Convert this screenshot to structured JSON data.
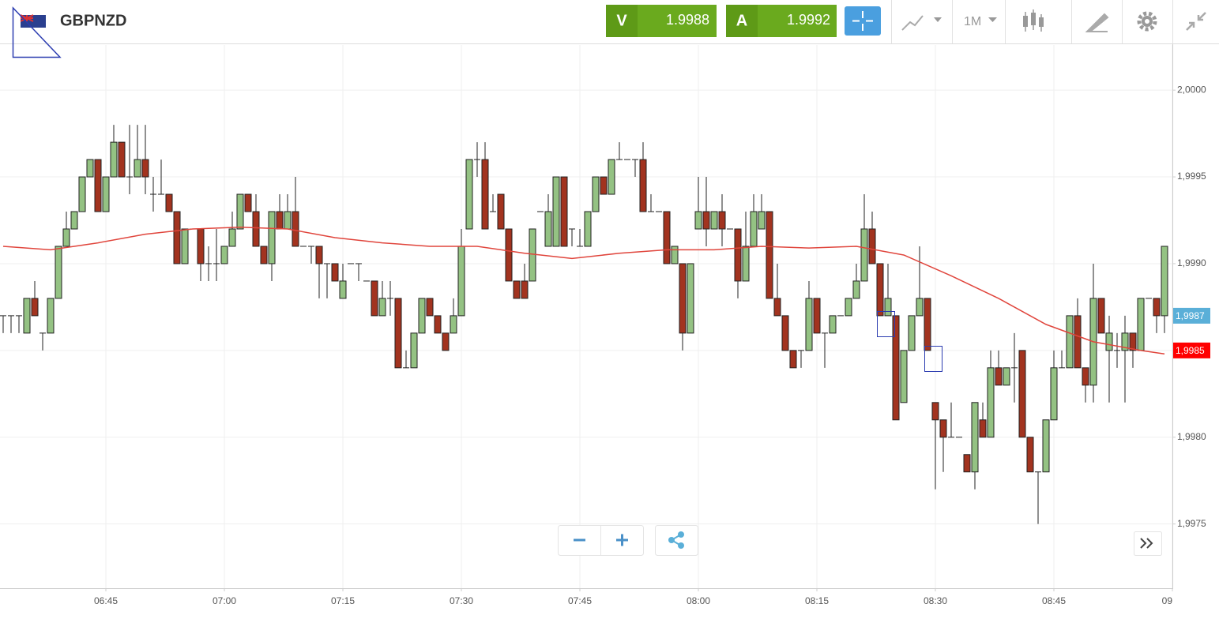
{
  "header": {
    "symbol": "GBPNZD",
    "sell": {
      "label": "V",
      "price": 1.9988
    },
    "buy": {
      "label": "A",
      "price": 1.9992
    },
    "timeframe": "1M"
  },
  "chart_data": {
    "type": "candlestick",
    "x": [
      "06:32",
      "06:33",
      "06:34",
      "06:35",
      "06:36",
      "06:37",
      "06:38",
      "06:39",
      "06:40",
      "06:41",
      "06:42",
      "06:43",
      "06:44",
      "06:45",
      "06:46",
      "06:47",
      "06:48",
      "06:49",
      "06:50",
      "06:51",
      "06:52",
      "06:53",
      "06:54",
      "06:55",
      "06:56",
      "06:57",
      "06:58",
      "06:59",
      "07:00",
      "07:01",
      "07:02",
      "07:03",
      "07:04",
      "07:05",
      "07:06",
      "07:07",
      "07:08",
      "07:09",
      "07:10",
      "07:11",
      "07:12",
      "07:13",
      "07:14",
      "07:15",
      "07:16",
      "07:17",
      "07:18",
      "07:19",
      "07:20",
      "07:21",
      "07:22",
      "07:23",
      "07:24",
      "07:25",
      "07:26",
      "07:27",
      "07:28",
      "07:29",
      "07:30",
      "07:31",
      "07:32",
      "07:33",
      "07:34",
      "07:35",
      "07:36",
      "07:37",
      "07:38",
      "07:39",
      "07:40",
      "07:41",
      "07:42",
      "07:43",
      "07:44",
      "07:45",
      "07:46",
      "07:47",
      "07:48",
      "07:49",
      "07:50",
      "07:51",
      "07:52",
      "07:53",
      "07:54",
      "07:55",
      "07:56",
      "07:57",
      "07:58",
      "07:59",
      "08:00",
      "08:01",
      "08:02",
      "08:03",
      "08:04",
      "08:05",
      "08:06",
      "08:07",
      "08:08",
      "08:09",
      "08:10",
      "08:11",
      "08:12",
      "08:13",
      "08:14",
      "08:15",
      "08:16",
      "08:17",
      "08:18",
      "08:19",
      "08:20",
      "08:21",
      "08:22",
      "08:23",
      "08:24",
      "08:25",
      "08:26",
      "08:27",
      "08:28",
      "08:29",
      "08:30",
      "08:31",
      "08:32",
      "08:33",
      "08:34",
      "08:35",
      "08:36",
      "08:37",
      "08:38",
      "08:39",
      "08:40",
      "08:41",
      "08:42",
      "08:43",
      "08:44",
      "08:45",
      "08:46",
      "08:47",
      "08:48",
      "08:49",
      "08:50",
      "08:51",
      "08:52",
      "08:53",
      "08:54",
      "08:55",
      "08:56",
      "08:57",
      "08:58",
      "08:59"
    ],
    "open": [
      1.9987,
      1.9987,
      1.9987,
      1.9986,
      1.9988,
      1.9986,
      1.9986,
      1.9988,
      1.9991,
      1.9992,
      1.9993,
      1.9995,
      1.9996,
      1.9993,
      1.9995,
      1.9997,
      1.9995,
      1.9995,
      1.9996,
      1.9994,
      1.9994,
      1.9994,
      1.9993,
      1.999,
      1.9992,
      1.9992,
      1.999,
      1.999,
      1.999,
      1.9991,
      1.9992,
      1.9994,
      1.9993,
      1.9991,
      1.999,
      1.9993,
      1.9992,
      1.9993,
      1.9991,
      1.9991,
      1.9991,
      1.999,
      1.999,
      1.9988,
      1.999,
      1.999,
      1.9989,
      1.9989,
      1.9987,
      1.9988,
      1.9988,
      1.9984,
      1.9984,
      1.9986,
      1.9988,
      1.9987,
      1.9986,
      1.9986,
      1.9987,
      1.9992,
      1.9996,
      1.9996,
      1.9993,
      1.9994,
      1.9992,
      1.9989,
      1.9989,
      1.9989,
      1.9993,
      1.9991,
      1.9991,
      1.9995,
      1.9992,
      1.9991,
      1.9991,
      1.9993,
      1.9995,
      1.9994,
      1.9996,
      1.9996,
      1.9996,
      1.9996,
      1.9993,
      1.9993,
      1.9993,
      1.999,
      1.999,
      1.9986,
      1.9992,
      1.9993,
      1.9992,
      1.9993,
      1.9992,
      1.9992,
      1.9989,
      1.9991,
      1.9992,
      1.9993,
      1.9988,
      1.9987,
      1.9985,
      1.9985,
      1.9985,
      1.9988,
      1.9986,
      1.9986,
      1.9987,
      1.9987,
      1.9988,
      1.9989,
      1.9992,
      1.999,
      1.9987,
      1.9987,
      1.9982,
      1.9985,
      1.9987,
      1.9988,
      1.9982,
      1.9981,
      1.998,
      1.998,
      1.9979,
      1.9978,
      1.9981,
      1.998,
      1.9984,
      1.9983,
      1.9984,
      1.9985,
      1.998,
      1.9978,
      1.9978,
      1.9981,
      1.9984,
      1.9984,
      1.9987,
      1.9984,
      1.9983,
      1.9988,
      1.9985,
      1.9985,
      1.9985,
      1.9986,
      1.9985,
      1.9988,
      1.9988,
      1.9987
    ],
    "high": [
      1.9987,
      1.9987,
      1.9987,
      1.9988,
      1.9989,
      1.9986,
      1.9988,
      1.9991,
      1.9993,
      1.9993,
      1.9995,
      1.9996,
      1.9996,
      1.9995,
      1.9998,
      1.9997,
      1.9998,
      1.9998,
      1.9998,
      1.9995,
      1.9996,
      1.9994,
      1.9993,
      1.9992,
      1.9992,
      1.9992,
      1.9991,
      1.9992,
      1.9991,
      1.9993,
      1.9994,
      1.9994,
      1.9994,
      1.9991,
      1.9993,
      1.9994,
      1.9994,
      1.9995,
      1.9991,
      1.9991,
      1.9991,
      1.999,
      1.999,
      1.999,
      1.999,
      1.999,
      1.9989,
      1.9989,
      1.9989,
      1.9989,
      1.9988,
      1.9985,
      1.9986,
      1.9988,
      1.9988,
      1.9987,
      1.9986,
      1.9988,
      1.9992,
      1.9996,
      1.9997,
      1.9997,
      1.9994,
      1.9994,
      1.9992,
      1.9989,
      1.999,
      1.9992,
      1.9993,
      1.9994,
      1.9995,
      1.9995,
      1.9992,
      1.9992,
      1.9993,
      1.9995,
      1.9995,
      1.9996,
      1.9997,
      1.9996,
      1.9996,
      1.9997,
      1.9994,
      1.9993,
      1.9993,
      1.9991,
      1.999,
      1.999,
      1.9995,
      1.9995,
      1.9993,
      1.9994,
      1.9992,
      1.9992,
      1.9993,
      1.9994,
      1.9994,
      1.9993,
      1.999,
      1.9987,
      1.9985,
      1.9985,
      1.9989,
      1.9988,
      1.9986,
      1.9987,
      1.9987,
      1.9988,
      1.999,
      1.9994,
      1.9993,
      1.999,
      1.999,
      1.9987,
      1.9985,
      1.9987,
      1.9991,
      1.9988,
      1.9982,
      1.9981,
      1.9982,
      1.998,
      1.9979,
      1.9982,
      1.9982,
      1.9985,
      1.9985,
      1.9984,
      1.9986,
      1.9985,
      1.998,
      1.9978,
      1.9981,
      1.9985,
      1.9985,
      1.9987,
      1.9988,
      1.9984,
      1.999,
      1.9988,
      1.9987,
      1.9986,
      1.9987,
      1.9986,
      1.9988,
      1.9988,
      1.9988,
      1.9991
    ],
    "low": [
      1.9986,
      1.9986,
      1.9986,
      1.9986,
      1.9987,
      1.9985,
      1.9986,
      1.9988,
      1.9991,
      1.9992,
      1.9993,
      1.9995,
      1.9993,
      1.9993,
      1.9995,
      1.9995,
      1.9994,
      1.9995,
      1.9994,
      1.9993,
      1.9994,
      1.9993,
      1.999,
      1.999,
      1.9992,
      1.9989,
      1.9989,
      1.9989,
      1.999,
      1.9991,
      1.9992,
      1.9993,
      1.9991,
      1.999,
      1.9989,
      1.9992,
      1.9992,
      1.9991,
      1.9991,
      1.999,
      1.9988,
      1.9988,
      1.9989,
      1.9988,
      1.999,
      1.9989,
      1.9989,
      1.9987,
      1.9987,
      1.9987,
      1.9984,
      1.9984,
      1.9984,
      1.9986,
      1.9987,
      1.9986,
      1.9985,
      1.9986,
      1.9987,
      1.9992,
      1.9995,
      1.9992,
      1.9993,
      1.9992,
      1.9989,
      1.9988,
      1.9988,
      1.9989,
      1.9993,
      1.9991,
      1.9991,
      1.9991,
      1.9991,
      1.9991,
      1.9991,
      1.9993,
      1.9994,
      1.9994,
      1.9996,
      1.9996,
      1.9995,
      1.9993,
      1.9993,
      1.9993,
      1.999,
      1.999,
      1.9985,
      1.9986,
      1.9992,
      1.9991,
      1.9992,
      1.9991,
      1.9992,
      1.9988,
      1.9989,
      1.9991,
      1.9992,
      1.9988,
      1.9987,
      1.9985,
      1.9984,
      1.9984,
      1.9985,
      1.9986,
      1.9984,
      1.9986,
      1.9987,
      1.9987,
      1.9988,
      1.9989,
      1.999,
      1.9987,
      1.9987,
      1.9981,
      1.9982,
      1.9985,
      1.9987,
      1.9985,
      1.9977,
      1.9978,
      1.998,
      1.998,
      1.9978,
      1.9977,
      1.998,
      1.998,
      1.9983,
      1.9983,
      1.9982,
      1.998,
      1.9978,
      1.9975,
      1.9978,
      1.9981,
      1.9984,
      1.9984,
      1.9984,
      1.9982,
      1.9982,
      1.9986,
      1.9982,
      1.9984,
      1.9982,
      1.9984,
      1.9985,
      1.9988,
      1.9986,
      1.9986
    ],
    "close": [
      1.9987,
      1.9987,
      1.9987,
      1.9988,
      1.9987,
      1.9986,
      1.9988,
      1.9991,
      1.9992,
      1.9993,
      1.9995,
      1.9996,
      1.9993,
      1.9995,
      1.9997,
      1.9995,
      1.9995,
      1.9996,
      1.9995,
      1.9994,
      1.9994,
      1.9993,
      1.999,
      1.9992,
      1.9992,
      1.999,
      1.999,
      1.999,
      1.9991,
      1.9992,
      1.9994,
      1.9993,
      1.9991,
      1.999,
      1.9993,
      1.9992,
      1.9993,
      1.9991,
      1.9991,
      1.9991,
      1.999,
      1.999,
      1.9989,
      1.9989,
      1.999,
      1.999,
      1.9989,
      1.9987,
      1.9988,
      1.9988,
      1.9984,
      1.9984,
      1.9986,
      1.9988,
      1.9987,
      1.9986,
      1.9985,
      1.9987,
      1.9991,
      1.9996,
      1.9996,
      1.9992,
      1.9993,
      1.9992,
      1.9989,
      1.9988,
      1.9988,
      1.9992,
      1.9993,
      1.9993,
      1.9995,
      1.9991,
      1.9992,
      1.9991,
      1.9993,
      1.9995,
      1.9994,
      1.9996,
      1.9996,
      1.9996,
      1.9996,
      1.9993,
      1.9993,
      1.9993,
      1.999,
      1.9991,
      1.9986,
      1.999,
      1.9993,
      1.9992,
      1.9993,
      1.9992,
      1.9992,
      1.9989,
      1.9991,
      1.9993,
      1.9993,
      1.9988,
      1.9987,
      1.9985,
      1.9984,
      1.9985,
      1.9988,
      1.9986,
      1.9986,
      1.9987,
      1.9987,
      1.9988,
      1.9989,
      1.9992,
      1.999,
      1.9987,
      1.9988,
      1.9981,
      1.9985,
      1.9987,
      1.9988,
      1.9985,
      1.9981,
      1.998,
      1.998,
      1.998,
      1.9978,
      1.9982,
      1.998,
      1.9984,
      1.9983,
      1.9984,
      1.9984,
      1.998,
      1.9978,
      1.9978,
      1.9981,
      1.9984,
      1.9984,
      1.9987,
      1.9984,
      1.9983,
      1.9988,
      1.9986,
      1.9986,
      1.9985,
      1.9986,
      1.9985,
      1.9988,
      1.9988,
      1.9987,
      1.9991
    ],
    "up_color": "#94c283",
    "down_color": "#a2331f",
    "moving_average": {
      "color": "#e0453c",
      "x": [
        "06:32",
        "06:38",
        "06:44",
        "06:50",
        "06:56",
        "07:02",
        "07:08",
        "07:14",
        "07:20",
        "07:26",
        "07:32",
        "07:38",
        "07:44",
        "07:50",
        "07:56",
        "08:02",
        "08:08",
        "08:14",
        "08:20",
        "08:26",
        "08:32",
        "08:38",
        "08:44",
        "08:50",
        "08:56",
        "08:59"
      ],
      "values": [
        1.9991,
        1.99908,
        1.99912,
        1.99917,
        1.9992,
        1.99921,
        1.9992,
        1.99915,
        1.99912,
        1.9991,
        1.9991,
        1.99906,
        1.99903,
        1.99906,
        1.99908,
        1.99908,
        1.9991,
        1.99909,
        1.9991,
        1.99905,
        1.99893,
        1.9988,
        1.99865,
        1.99855,
        1.9985,
        1.99848
      ]
    },
    "price_labels": [
      {
        "value": 1.9987,
        "label": "1,9987",
        "color": "#5aafd8"
      },
      {
        "value": 1.9985,
        "label": "1,9985",
        "color": "#ff0000"
      }
    ],
    "xlim": [
      "06:32",
      "09:00"
    ],
    "xticks": [
      "06:45",
      "07:00",
      "07:15",
      "07:30",
      "07:45",
      "08:00",
      "08:15",
      "08:30",
      "08:45",
      {
        "value": "09:00",
        "label": "09"
      }
    ],
    "ylim": [
      1.99713,
      2.00026
    ],
    "yticks": [
      {
        "value": 2,
        "label": "2,0000"
      },
      {
        "value": 1.9995,
        "label": "1,9995"
      },
      {
        "value": 1.999,
        "label": "1,9990"
      },
      {
        "value": 1.9985,
        "label": "1,9985"
      },
      {
        "value": 1.998,
        "label": "1,9980"
      },
      {
        "value": 1.9975,
        "label": "1,9975"
      }
    ],
    "grid": true
  }
}
